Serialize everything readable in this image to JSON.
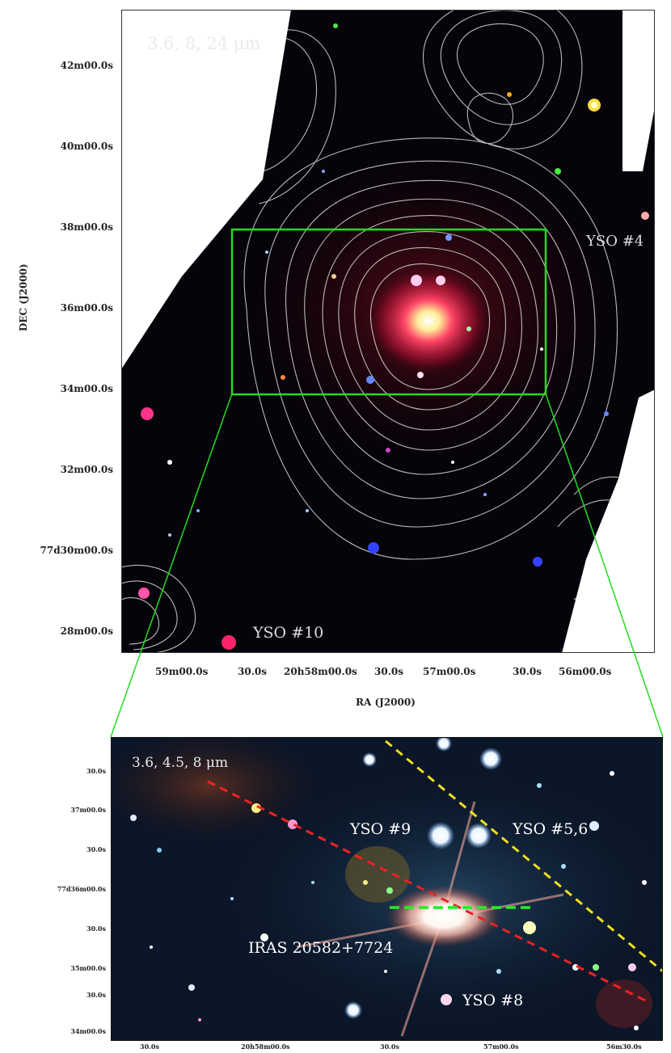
{
  "top_panel": {
    "band_label": "3.6, 8, 24 μm",
    "yso_4_label": "YSO #4",
    "yso_10_label": "YSO #10",
    "dec_axis_label": "DEC (J2000)",
    "ra_axis_label": "RA (J2000)",
    "dec_ticks": [
      "42m00.0s",
      "40m00.0s",
      "38m00.0s",
      "36m00.0s",
      "34m00.0s",
      "32m00.0s",
      "77d30m00.0s",
      "28m00.0s"
    ],
    "ra_ticks": [
      "59m00.0s",
      "30.0s",
      "20h58m00.0s",
      "30.0s",
      "57m00.0s",
      "30.0s",
      "56m00.0s"
    ]
  },
  "bottom_panel": {
    "band_label": "3.6, 4.5, 8 μm",
    "yso_9_label": "YSO #9",
    "yso_5_6_label": "YSO #5,6",
    "iras_label": "IRAS 20582+7724",
    "yso_8_label": "YSO #8",
    "dec_ticks": [
      "30.0s",
      "37m00.0s",
      "30.0s",
      "77d36m00.0s",
      "30.0s",
      "35m00.0s",
      "30.0s",
      "34m00.0s"
    ],
    "ra_ticks": [
      "30.0s",
      "20h58m00.0s",
      "30.0s",
      "57m00.0s",
      "56m30.0s"
    ]
  },
  "colors": {
    "zoom_box": "#22dd22",
    "contours": "#d8d8d8",
    "outflow_red": "#ee2222",
    "outflow_yellow": "#eedd22",
    "outflow_green": "#22ee22"
  }
}
